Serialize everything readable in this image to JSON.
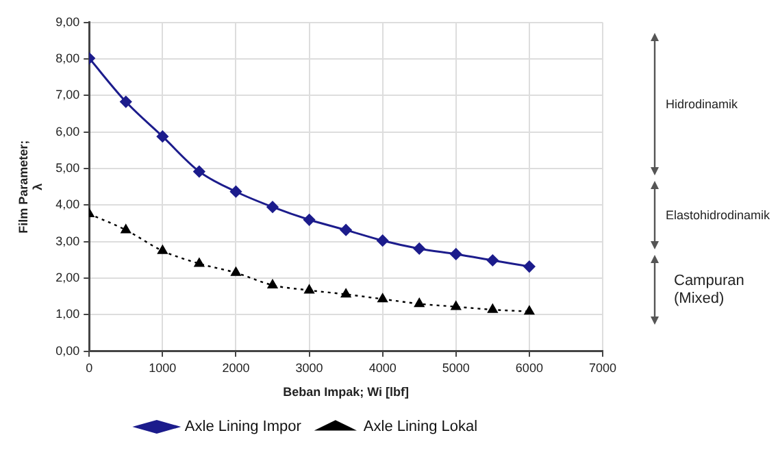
{
  "chart_data": {
    "type": "line",
    "xlabel": "Beban Impak; Wi [lbf]",
    "ylabel": "Film Parameter;\nλ",
    "x": [
      0,
      500,
      1000,
      1500,
      2000,
      2500,
      3000,
      3500,
      4000,
      4500,
      5000,
      5500,
      6000
    ],
    "series": [
      {
        "name": "Axle Lining Impor",
        "color": "#1c1c8c",
        "marker": "diamond",
        "line_style": "solid",
        "values": [
          8.02,
          6.83,
          5.88,
          4.92,
          4.37,
          3.95,
          3.6,
          3.32,
          3.03,
          2.81,
          2.66,
          2.49,
          2.32
        ]
      },
      {
        "name": "Axle Lining Lokal",
        "color": "#000000",
        "marker": "triangle",
        "line_style": "dotted",
        "values": [
          3.76,
          3.32,
          2.75,
          2.4,
          2.15,
          1.81,
          1.67,
          1.56,
          1.43,
          1.3,
          1.22,
          1.14,
          1.09
        ]
      }
    ],
    "xlim": [
      0,
      7000
    ],
    "xticks": [
      0,
      1000,
      2000,
      3000,
      4000,
      5000,
      6000,
      7000
    ],
    "ylim": [
      0,
      9
    ],
    "yticks": [
      {
        "value": 0,
        "label": "0,00"
      },
      {
        "value": 1,
        "label": "1,00"
      },
      {
        "value": 2,
        "label": "2,00"
      },
      {
        "value": 3,
        "label": "3,00"
      },
      {
        "value": 4,
        "label": "4,00"
      },
      {
        "value": 5,
        "label": "5,00"
      },
      {
        "value": 6,
        "label": "6,00"
      },
      {
        "value": 7,
        "label": "7,00"
      },
      {
        "value": 8,
        "label": "8,00"
      },
      {
        "value": 9,
        "label": "9,00"
      }
    ],
    "annotations": [
      "Hidrodinamik",
      "Elastohidrodinamik",
      "Campuran\n(Mixed)"
    ],
    "grid": true,
    "legend": "bottom"
  }
}
